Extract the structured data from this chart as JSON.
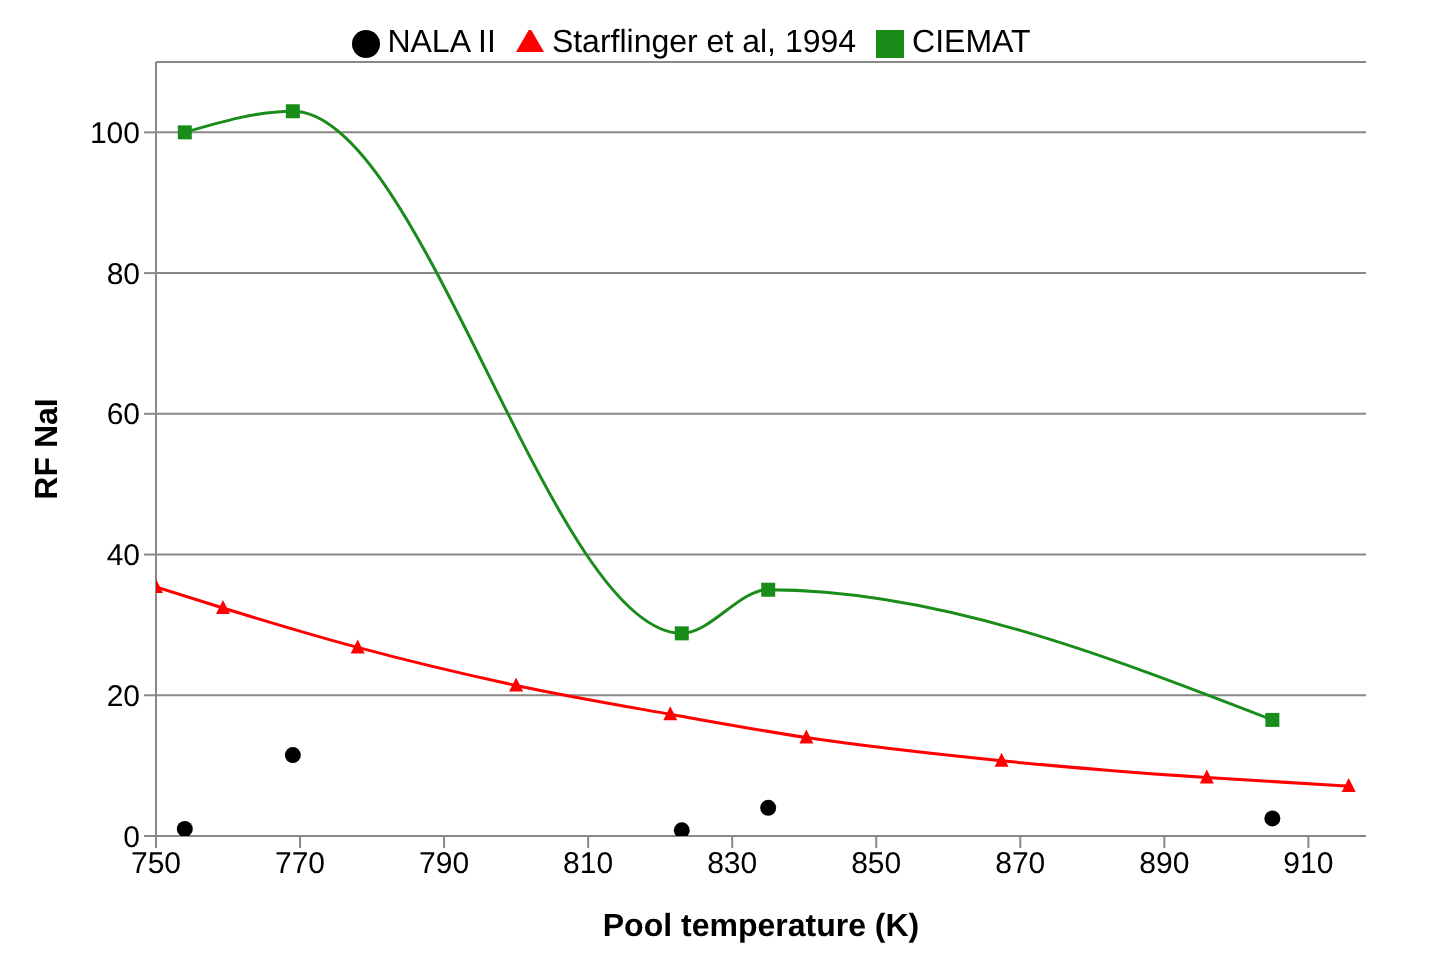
{
  "chart_data": {
    "type": "line",
    "xlabel": "Pool temperature (K)",
    "ylabel": "RF NaI",
    "xlim": [
      750,
      918
    ],
    "xticks": [
      750,
      770,
      790,
      810,
      830,
      850,
      870,
      890,
      910
    ],
    "ylim": [
      0,
      110
    ],
    "yticks": [
      0,
      20,
      40,
      60,
      80,
      100
    ],
    "grid": "y",
    "legend": "top",
    "series": [
      {
        "name": "NALA II",
        "type": "scatter",
        "marker": "circle",
        "color": "#000000",
        "x": [
          754,
          769,
          823,
          835,
          905
        ],
        "values": [
          1,
          11.5,
          0.8,
          4,
          2.5
        ]
      },
      {
        "name": "Starflinger et al, 1994",
        "marker": "triangle",
        "color": "#ff0000",
        "x": [
          750,
          759.3,
          778,
          800,
          821.4,
          840.3,
          867.4,
          895.9,
          915.6
        ],
        "values": [
          35.4,
          32.4,
          26.8,
          21.4,
          17.3,
          14,
          10.7,
          8.3,
          7.1
        ]
      },
      {
        "name": "CIEMAT",
        "marker": "square",
        "color": "#1a8c1a",
        "x": [
          754,
          769,
          823,
          835,
          905
        ],
        "values": [
          100,
          103,
          28.8,
          35,
          16.5
        ]
      }
    ]
  }
}
